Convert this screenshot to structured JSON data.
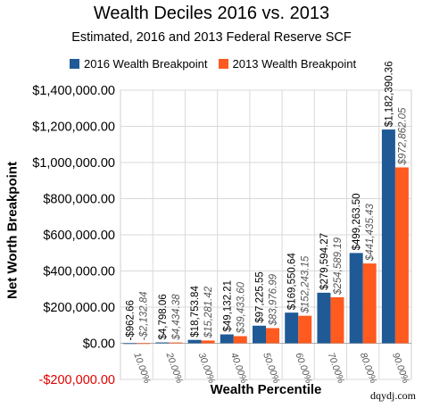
{
  "chart_data": {
    "type": "bar",
    "title": "Wealth Deciles 2016 vs. 2013",
    "subtitle": "Estimated, 2016 and 2013 Federal Reserve SCF",
    "xlabel": "Wealth Percentile",
    "ylabel": "Net Worth Breakpoint",
    "ylim": [
      -200000,
      1400000
    ],
    "yticks": [
      {
        "value": 1400000,
        "label": "$1,400,000.00"
      },
      {
        "value": 1200000,
        "label": "$1,200,000.00"
      },
      {
        "value": 1000000,
        "label": "$1,000,000.00"
      },
      {
        "value": 800000,
        "label": "$800,000.00"
      },
      {
        "value": 600000,
        "label": "$600,000.00"
      },
      {
        "value": 400000,
        "label": "$400,000.00"
      },
      {
        "value": 200000,
        "label": "$200,000.00"
      },
      {
        "value": 0,
        "label": "$0.00"
      },
      {
        "value": -200000,
        "label": "-$200,000.00"
      }
    ],
    "grid": true,
    "legend_position": "top",
    "categories": [
      "10.00%",
      "20.00%",
      "30.00%",
      "40.00%",
      "50.00%",
      "60.00%",
      "70.00%",
      "80.00%",
      "90.00%"
    ],
    "series": [
      {
        "name": "2016 Wealth Breakpoint",
        "color": "#1f5a96",
        "values": [
          -962.66,
          4798.06,
          18753.84,
          49132.21,
          97225.55,
          169550.64,
          279594.27,
          499263.5,
          1182390.36
        ],
        "labels": [
          "-$962.66",
          "$4,798.06",
          "$18,753.84",
          "$49,132.21",
          "$97,225.55",
          "$169,550.64",
          "$279,594.27",
          "$499,263.50",
          "$1,182,390.36"
        ]
      },
      {
        "name": "2013 Wealth Breakpoint",
        "color": "#ff5a1f",
        "values": [
          -2132.84,
          4434.38,
          15281.42,
          39433.6,
          83976.99,
          152243.15,
          254589.19,
          441435.43,
          972862.05
        ],
        "labels": [
          "-$2,132.84",
          "$4,434.38",
          "$15,281.42",
          "$39,433.60",
          "$83,976.99",
          "$152,243.15",
          "$254,589.19",
          "$441,435.43",
          "$972,862.05"
        ]
      }
    ]
  },
  "credit": "dqydj.com"
}
